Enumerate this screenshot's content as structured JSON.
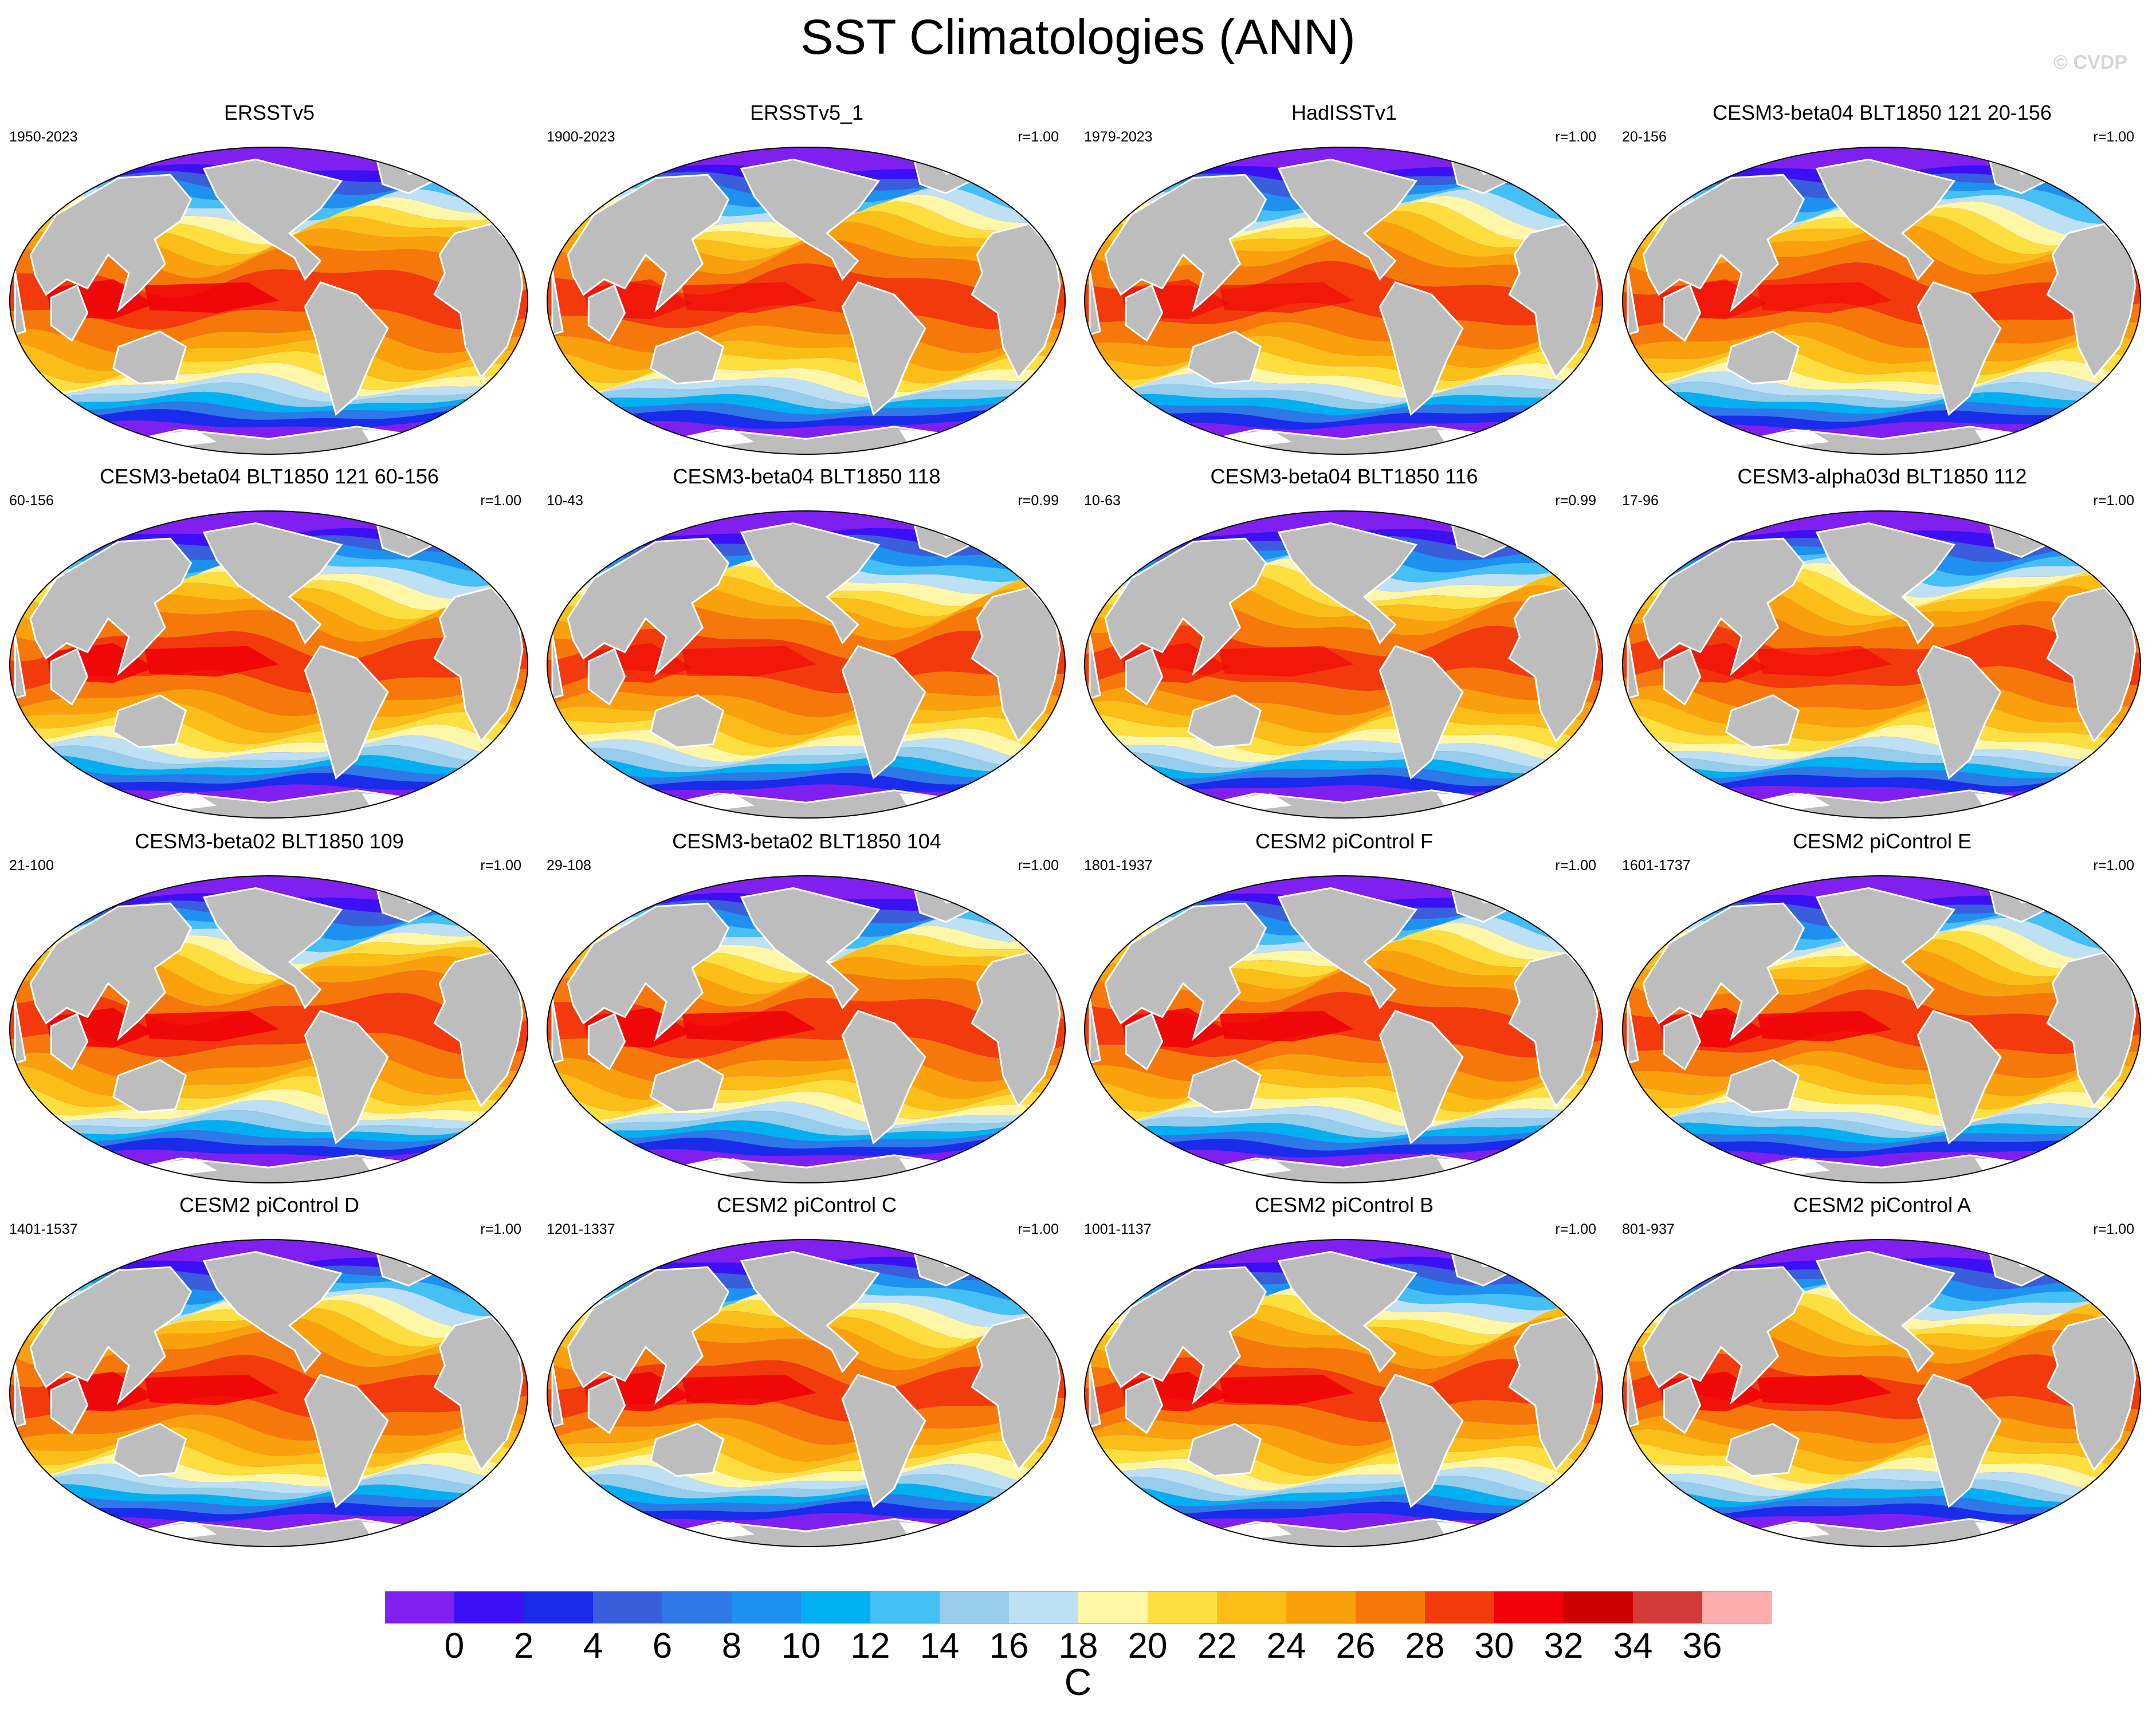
{
  "title": "SST Climatologies (ANN)",
  "watermark": "© CVDP",
  "panels": [
    {
      "title": "ERSSTv5",
      "years": "1950-2023",
      "r": ""
    },
    {
      "title": "ERSSTv5_1",
      "years": "1900-2023",
      "r": "r=1.00"
    },
    {
      "title": "HadISSTv1",
      "years": "1979-2023",
      "r": "r=1.00"
    },
    {
      "title": "CESM3-beta04 BLT1850 121 20-156",
      "years": "20-156",
      "r": "r=1.00"
    },
    {
      "title": "CESM3-beta04 BLT1850 121 60-156",
      "years": "60-156",
      "r": "r=1.00"
    },
    {
      "title": "CESM3-beta04 BLT1850 118",
      "years": "10-43",
      "r": "r=0.99"
    },
    {
      "title": "CESM3-beta04 BLT1850 116",
      "years": "10-63",
      "r": "r=0.99"
    },
    {
      "title": "CESM3-alpha03d BLT1850 112",
      "years": "17-96",
      "r": "r=1.00"
    },
    {
      "title": "CESM3-beta02 BLT1850 109",
      "years": "21-100",
      "r": "r=1.00"
    },
    {
      "title": "CESM3-beta02 BLT1850 104",
      "years": "29-108",
      "r": "r=1.00"
    },
    {
      "title": "CESM2 piControl F",
      "years": "1801-1937",
      "r": "r=1.00"
    },
    {
      "title": "CESM2 piControl E",
      "years": "1601-1737",
      "r": "r=1.00"
    },
    {
      "title": "CESM2 piControl D",
      "years": "1401-1537",
      "r": "r=1.00"
    },
    {
      "title": "CESM2 piControl C",
      "years": "1201-1337",
      "r": "r=1.00"
    },
    {
      "title": "CESM2 piControl B",
      "years": "1001-1137",
      "r": "r=1.00"
    },
    {
      "title": "CESM2 piControl A",
      "years": "801-937",
      "r": "r=1.00"
    }
  ],
  "colorbar": {
    "colors": [
      "#7f1ff0",
      "#3b10f5",
      "#1a2bea",
      "#3a5ddc",
      "#2e78e8",
      "#1e90f0",
      "#00b0f0",
      "#45c0f5",
      "#95cdea",
      "#bde0f5",
      "#fff7a8",
      "#fde040",
      "#fbbd18",
      "#f9a00c",
      "#f7780a",
      "#f23a0c",
      "#f00008",
      "#cc0000",
      "#d33a3a",
      "#fcaeae"
    ],
    "ticks": [
      "0",
      "2",
      "4",
      "6",
      "8",
      "10",
      "12",
      "14",
      "16",
      "18",
      "20",
      "22",
      "24",
      "26",
      "28",
      "30",
      "32",
      "34",
      "36"
    ],
    "unit": "C"
  }
}
